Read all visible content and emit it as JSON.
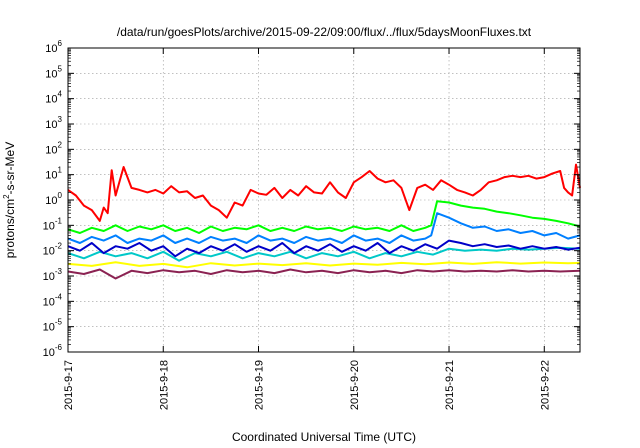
{
  "chart_data": {
    "type": "line",
    "title": "/data/run/goesPlots/archive/2015-09-22/09:00/flux/../flux/5daysMoonFluxes.txt",
    "xlabel": "Coordinated Universal Time (UTC)",
    "ylabel_base": "protons/cm",
    "ylabel_sup": "2",
    "ylabel_rest": "-s-sr-MeV",
    "yscale": "log",
    "ylim": [
      1e-06,
      1000000.0
    ],
    "y_ticks": [
      {
        "exp": "-6"
      },
      {
        "exp": "-5"
      },
      {
        "exp": "-4"
      },
      {
        "exp": "-3"
      },
      {
        "exp": "-2"
      },
      {
        "exp": "-1"
      },
      {
        "exp": "0"
      },
      {
        "exp": "1"
      },
      {
        "exp": "2"
      },
      {
        "exp": "3"
      },
      {
        "exp": "4"
      },
      {
        "exp": "5"
      },
      {
        "exp": "6"
      }
    ],
    "y_tick_base": "10",
    "xlim": [
      "2015-09-17T00:00",
      "2015-09-22T09:00"
    ],
    "x_ticks": [
      "2015-9-17",
      "2015-9-18",
      "2015-9-19",
      "2015-9-20",
      "2015-9-21",
      "2015-9-22"
    ],
    "grid": true,
    "series": [
      {
        "color": "#ff0000",
        "x": [
          "2015-09-17T00:00",
          "2015-09-17T02:00",
          "2015-09-17T04:00",
          "2015-09-17T06:00",
          "2015-09-17T08:00",
          "2015-09-17T09:00",
          "2015-09-17T10:00",
          "2015-09-17T11:00",
          "2015-09-17T12:00",
          "2015-09-17T14:00",
          "2015-09-17T16:00",
          "2015-09-17T18:00",
          "2015-09-17T20:00",
          "2015-09-17T22:00",
          "2015-09-18T00:00",
          "2015-09-18T02:00",
          "2015-09-18T04:00",
          "2015-09-18T06:00",
          "2015-09-18T08:00",
          "2015-09-18T10:00",
          "2015-09-18T12:00",
          "2015-09-18T14:00",
          "2015-09-18T16:00",
          "2015-09-18T18:00",
          "2015-09-18T20:00",
          "2015-09-18T22:00",
          "2015-09-19T00:00",
          "2015-09-19T02:00",
          "2015-09-19T04:00",
          "2015-09-19T06:00",
          "2015-09-19T08:00",
          "2015-09-19T10:00",
          "2015-09-19T12:00",
          "2015-09-19T14:00",
          "2015-09-19T16:00",
          "2015-09-19T18:00",
          "2015-09-19T20:00",
          "2015-09-19T22:00",
          "2015-09-20T00:00",
          "2015-09-20T02:00",
          "2015-09-20T04:00",
          "2015-09-20T06:00",
          "2015-09-20T08:00",
          "2015-09-20T10:00",
          "2015-09-20T12:00",
          "2015-09-20T14:00",
          "2015-09-20T16:00",
          "2015-09-20T18:00",
          "2015-09-20T20:00",
          "2015-09-20T22:00",
          "2015-09-21T00:00",
          "2015-09-21T02:00",
          "2015-09-21T04:00",
          "2015-09-21T06:00",
          "2015-09-21T08:00",
          "2015-09-21T10:00",
          "2015-09-21T12:00",
          "2015-09-21T14:00",
          "2015-09-21T16:00",
          "2015-09-21T18:00",
          "2015-09-21T20:00",
          "2015-09-21T22:00",
          "2015-09-22T00:00",
          "2015-09-22T02:00",
          "2015-09-22T04:00",
          "2015-09-22T05:00",
          "2015-09-22T06:00",
          "2015-09-22T07:00",
          "2015-09-22T08:00",
          "2015-09-22T09:00"
        ],
        "y": [
          2.5,
          1.5,
          0.6,
          0.4,
          0.15,
          0.5,
          0.3,
          15,
          1.5,
          20,
          3,
          2.5,
          2,
          2.5,
          1.8,
          3.5,
          2,
          2.2,
          1.2,
          1.5,
          0.6,
          0.4,
          0.2,
          0.8,
          0.6,
          2.5,
          1.8,
          1.6,
          3,
          1.2,
          2.5,
          1.5,
          3.5,
          2,
          1.8,
          5,
          2,
          1.2,
          5,
          8,
          14,
          7,
          5,
          6,
          3,
          0.4,
          3,
          4,
          2.5,
          6,
          4,
          2.5,
          2,
          1.5,
          2.5,
          5,
          6,
          8,
          9,
          8,
          9,
          7,
          8,
          11,
          14,
          3,
          2,
          1.5,
          25,
          3
        ]
      },
      {
        "color": "#00ff00",
        "x": [
          "2015-09-17T00:00",
          "2015-09-17T03:00",
          "2015-09-17T06:00",
          "2015-09-17T09:00",
          "2015-09-17T12:00",
          "2015-09-17T15:00",
          "2015-09-17T18:00",
          "2015-09-17T21:00",
          "2015-09-18T00:00",
          "2015-09-18T03:00",
          "2015-09-18T06:00",
          "2015-09-18T09:00",
          "2015-09-18T12:00",
          "2015-09-18T15:00",
          "2015-09-18T18:00",
          "2015-09-18T21:00",
          "2015-09-19T00:00",
          "2015-09-19T03:00",
          "2015-09-19T06:00",
          "2015-09-19T09:00",
          "2015-09-19T12:00",
          "2015-09-19T15:00",
          "2015-09-19T18:00",
          "2015-09-19T21:00",
          "2015-09-20T00:00",
          "2015-09-20T03:00",
          "2015-09-20T06:00",
          "2015-09-20T09:00",
          "2015-09-20T12:00",
          "2015-09-20T15:00",
          "2015-09-20T18:00",
          "2015-09-20T19:30",
          "2015-09-20T21:00",
          "2015-09-21T00:00",
          "2015-09-21T03:00",
          "2015-09-21T06:00",
          "2015-09-21T09:00",
          "2015-09-21T12:00",
          "2015-09-21T15:00",
          "2015-09-21T18:00",
          "2015-09-21T21:00",
          "2015-09-22T00:00",
          "2015-09-22T03:00",
          "2015-09-22T06:00",
          "2015-09-22T09:00"
        ],
        "y": [
          0.07,
          0.05,
          0.08,
          0.06,
          0.1,
          0.06,
          0.09,
          0.07,
          0.1,
          0.06,
          0.08,
          0.05,
          0.09,
          0.06,
          0.08,
          0.07,
          0.1,
          0.06,
          0.08,
          0.06,
          0.09,
          0.07,
          0.08,
          0.06,
          0.09,
          0.07,
          0.08,
          0.06,
          0.1,
          0.06,
          0.08,
          0.1,
          0.9,
          0.8,
          0.6,
          0.5,
          0.45,
          0.35,
          0.3,
          0.25,
          0.2,
          0.18,
          0.15,
          0.12,
          0.09
        ]
      },
      {
        "color": "#0080ff",
        "x": [
          "2015-09-17T00:00",
          "2015-09-17T03:00",
          "2015-09-17T06:00",
          "2015-09-17T09:00",
          "2015-09-17T12:00",
          "2015-09-17T15:00",
          "2015-09-17T18:00",
          "2015-09-17T21:00",
          "2015-09-18T00:00",
          "2015-09-18T03:00",
          "2015-09-18T06:00",
          "2015-09-18T09:00",
          "2015-09-18T12:00",
          "2015-09-18T15:00",
          "2015-09-18T18:00",
          "2015-09-18T21:00",
          "2015-09-19T00:00",
          "2015-09-19T03:00",
          "2015-09-19T06:00",
          "2015-09-19T09:00",
          "2015-09-19T12:00",
          "2015-09-19T15:00",
          "2015-09-19T18:00",
          "2015-09-19T21:00",
          "2015-09-20T00:00",
          "2015-09-20T03:00",
          "2015-09-20T06:00",
          "2015-09-20T09:00",
          "2015-09-20T12:00",
          "2015-09-20T15:00",
          "2015-09-20T18:00",
          "2015-09-20T19:30",
          "2015-09-20T21:00",
          "2015-09-21T00:00",
          "2015-09-21T03:00",
          "2015-09-21T06:00",
          "2015-09-21T09:00",
          "2015-09-21T12:00",
          "2015-09-21T15:00",
          "2015-09-21T18:00",
          "2015-09-21T21:00",
          "2015-09-22T00:00",
          "2015-09-22T03:00",
          "2015-09-22T06:00",
          "2015-09-22T09:00"
        ],
        "y": [
          0.03,
          0.02,
          0.035,
          0.025,
          0.04,
          0.02,
          0.03,
          0.025,
          0.04,
          0.02,
          0.03,
          0.02,
          0.035,
          0.025,
          0.03,
          0.02,
          0.04,
          0.025,
          0.03,
          0.02,
          0.035,
          0.025,
          0.03,
          0.02,
          0.04,
          0.025,
          0.03,
          0.02,
          0.04,
          0.025,
          0.03,
          0.04,
          0.3,
          0.2,
          0.12,
          0.08,
          0.09,
          0.06,
          0.07,
          0.05,
          0.06,
          0.04,
          0.05,
          0.03,
          0.04
        ]
      },
      {
        "color": "#00c8c8",
        "x": [
          "2015-09-17T00:00",
          "2015-09-17T04:00",
          "2015-09-17T08:00",
          "2015-09-17T12:00",
          "2015-09-17T16:00",
          "2015-09-17T20:00",
          "2015-09-18T00:00",
          "2015-09-18T04:00",
          "2015-09-18T08:00",
          "2015-09-18T12:00",
          "2015-09-18T16:00",
          "2015-09-18T20:00",
          "2015-09-19T00:00",
          "2015-09-19T04:00",
          "2015-09-19T08:00",
          "2015-09-19T12:00",
          "2015-09-19T16:00",
          "2015-09-19T20:00",
          "2015-09-20T00:00",
          "2015-09-20T04:00",
          "2015-09-20T08:00",
          "2015-09-20T12:00",
          "2015-09-20T16:00",
          "2015-09-20T20:00",
          "2015-09-21T00:00",
          "2015-09-21T04:00",
          "2015-09-21T08:00",
          "2015-09-21T12:00",
          "2015-09-21T16:00",
          "2015-09-21T20:00",
          "2015-09-22T00:00",
          "2015-09-22T04:00",
          "2015-09-22T09:00"
        ],
        "y": [
          0.008,
          0.005,
          0.009,
          0.006,
          0.008,
          0.005,
          0.009,
          0.004,
          0.008,
          0.006,
          0.009,
          0.005,
          0.008,
          0.006,
          0.009,
          0.005,
          0.008,
          0.006,
          0.009,
          0.005,
          0.008,
          0.006,
          0.009,
          0.007,
          0.012,
          0.01,
          0.011,
          0.01,
          0.012,
          0.011,
          0.012,
          0.013,
          0.012
        ]
      },
      {
        "color": "#0000c8",
        "x": [
          "2015-09-17T00:00",
          "2015-09-17T03:00",
          "2015-09-17T06:00",
          "2015-09-17T09:00",
          "2015-09-17T12:00",
          "2015-09-17T15:00",
          "2015-09-17T18:00",
          "2015-09-17T21:00",
          "2015-09-18T00:00",
          "2015-09-18T03:00",
          "2015-09-18T06:00",
          "2015-09-18T09:00",
          "2015-09-18T12:00",
          "2015-09-18T15:00",
          "2015-09-18T18:00",
          "2015-09-18T21:00",
          "2015-09-19T00:00",
          "2015-09-19T03:00",
          "2015-09-19T06:00",
          "2015-09-19T09:00",
          "2015-09-19T12:00",
          "2015-09-19T15:00",
          "2015-09-19T18:00",
          "2015-09-19T21:00",
          "2015-09-20T00:00",
          "2015-09-20T03:00",
          "2015-09-20T06:00",
          "2015-09-20T09:00",
          "2015-09-20T12:00",
          "2015-09-20T15:00",
          "2015-09-20T18:00",
          "2015-09-20T21:00",
          "2015-09-21T00:00",
          "2015-09-21T03:00",
          "2015-09-21T06:00",
          "2015-09-21T09:00",
          "2015-09-21T12:00",
          "2015-09-21T15:00",
          "2015-09-21T18:00",
          "2015-09-21T21:00",
          "2015-09-22T00:00",
          "2015-09-22T03:00",
          "2015-09-22T06:00",
          "2015-09-22T09:00"
        ],
        "y": [
          0.015,
          0.01,
          0.02,
          0.008,
          0.015,
          0.012,
          0.02,
          0.01,
          0.015,
          0.006,
          0.012,
          0.008,
          0.015,
          0.01,
          0.018,
          0.009,
          0.015,
          0.01,
          0.02,
          0.008,
          0.015,
          0.01,
          0.018,
          0.009,
          0.015,
          0.01,
          0.02,
          0.008,
          0.015,
          0.01,
          0.018,
          0.012,
          0.025,
          0.02,
          0.015,
          0.018,
          0.014,
          0.016,
          0.012,
          0.015,
          0.012,
          0.014,
          0.011,
          0.013
        ]
      },
      {
        "color": "#ffff00",
        "x": [
          "2015-09-17T00:00",
          "2015-09-17T06:00",
          "2015-09-17T12:00",
          "2015-09-17T18:00",
          "2015-09-18T00:00",
          "2015-09-18T06:00",
          "2015-09-18T12:00",
          "2015-09-18T18:00",
          "2015-09-19T00:00",
          "2015-09-19T06:00",
          "2015-09-19T12:00",
          "2015-09-19T18:00",
          "2015-09-20T00:00",
          "2015-09-20T06:00",
          "2015-09-20T12:00",
          "2015-09-20T18:00",
          "2015-09-21T00:00",
          "2015-09-21T06:00",
          "2015-09-21T12:00",
          "2015-09-21T18:00",
          "2015-09-22T00:00",
          "2015-09-22T06:00",
          "2015-09-22T09:00"
        ],
        "y": [
          0.003,
          0.0025,
          0.0035,
          0.0025,
          0.003,
          0.0022,
          0.0032,
          0.0026,
          0.0031,
          0.0027,
          0.0032,
          0.0026,
          0.0031,
          0.0028,
          0.0033,
          0.0029,
          0.0034,
          0.003,
          0.0035,
          0.0031,
          0.0034,
          0.0032,
          0.0033
        ]
      },
      {
        "color": "#8b2252",
        "x": [
          "2015-09-17T00:00",
          "2015-09-17T04:00",
          "2015-09-17T08:00",
          "2015-09-17T12:00",
          "2015-09-17T16:00",
          "2015-09-17T20:00",
          "2015-09-18T00:00",
          "2015-09-18T04:00",
          "2015-09-18T08:00",
          "2015-09-18T12:00",
          "2015-09-18T16:00",
          "2015-09-18T20:00",
          "2015-09-19T00:00",
          "2015-09-19T04:00",
          "2015-09-19T08:00",
          "2015-09-19T12:00",
          "2015-09-19T16:00",
          "2015-09-19T20:00",
          "2015-09-20T00:00",
          "2015-09-20T04:00",
          "2015-09-20T08:00",
          "2015-09-20T12:00",
          "2015-09-20T16:00",
          "2015-09-20T20:00",
          "2015-09-21T00:00",
          "2015-09-21T04:00",
          "2015-09-21T08:00",
          "2015-09-21T12:00",
          "2015-09-21T16:00",
          "2015-09-21T20:00",
          "2015-09-22T00:00",
          "2015-09-22T04:00",
          "2015-09-22T09:00"
        ],
        "y": [
          0.0015,
          0.0012,
          0.0018,
          0.0008,
          0.0016,
          0.0013,
          0.0017,
          0.0014,
          0.0016,
          0.0012,
          0.0017,
          0.0014,
          0.0016,
          0.0013,
          0.0018,
          0.0014,
          0.0016,
          0.0013,
          0.0017,
          0.0014,
          0.0016,
          0.0013,
          0.0017,
          0.0015,
          0.0017,
          0.0015,
          0.0016,
          0.0015,
          0.0017,
          0.0015,
          0.0016,
          0.0015,
          0.0016
        ]
      }
    ]
  }
}
